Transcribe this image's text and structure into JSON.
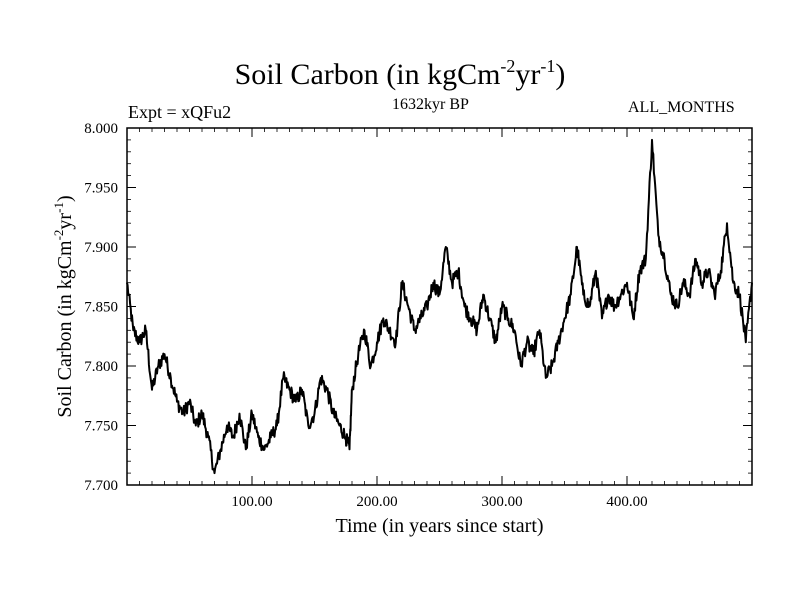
{
  "title": {
    "prefix": "Soil Carbon (in kgCm",
    "exp1": "-2",
    "mid": "yr",
    "exp2": "-1",
    "suffix": ")"
  },
  "header": {
    "experiment": "Expt = xQFu2",
    "period": "1632kyr BP",
    "months": "ALL_MONTHS"
  },
  "chart_data": {
    "type": "line",
    "title": "Soil Carbon (in kgCm-2yr-1)",
    "xlabel": "Time (in years since start)",
    "ylabel": "Soil Carbon (in kgCm-2yr-1)",
    "xlim": [
      0,
      500
    ],
    "ylim": [
      7.7,
      8.0
    ],
    "xticks": [
      100,
      200,
      300,
      400
    ],
    "xtick_labels": [
      "100.00",
      "200.00",
      "300.00",
      "400.00"
    ],
    "yticks": [
      7.7,
      7.75,
      7.8,
      7.85,
      7.9,
      7.95,
      8.0
    ],
    "ytick_labels": [
      "7.700",
      "7.750",
      "7.800",
      "7.850",
      "7.900",
      "7.950",
      "8.000"
    ],
    "series": [
      {
        "name": "Soil Carbon",
        "x": [
          0,
          5,
          10,
          15,
          20,
          25,
          30,
          35,
          40,
          45,
          50,
          55,
          60,
          65,
          70,
          75,
          80,
          85,
          90,
          95,
          100,
          105,
          110,
          115,
          120,
          125,
          130,
          135,
          140,
          145,
          150,
          155,
          160,
          165,
          170,
          175,
          178,
          180,
          185,
          190,
          195,
          200,
          205,
          210,
          215,
          220,
          225,
          230,
          235,
          240,
          245,
          250,
          255,
          260,
          265,
          270,
          275,
          280,
          285,
          290,
          295,
          300,
          305,
          310,
          315,
          320,
          325,
          330,
          335,
          340,
          345,
          350,
          355,
          360,
          365,
          370,
          375,
          380,
          385,
          390,
          395,
          400,
          405,
          410,
          415,
          420,
          425,
          430,
          435,
          440,
          445,
          450,
          455,
          460,
          465,
          470,
          475,
          480,
          485,
          490,
          495,
          500
        ],
        "y": [
          7.87,
          7.83,
          7.82,
          7.83,
          7.78,
          7.8,
          7.81,
          7.79,
          7.77,
          7.76,
          7.77,
          7.75,
          7.76,
          7.74,
          7.71,
          7.73,
          7.75,
          7.74,
          7.76,
          7.73,
          7.76,
          7.74,
          7.73,
          7.74,
          7.75,
          7.79,
          7.78,
          7.77,
          7.78,
          7.75,
          7.76,
          7.79,
          7.78,
          7.76,
          7.75,
          7.74,
          7.73,
          7.78,
          7.81,
          7.83,
          7.8,
          7.82,
          7.84,
          7.83,
          7.82,
          7.87,
          7.85,
          7.83,
          7.84,
          7.85,
          7.87,
          7.86,
          7.9,
          7.87,
          7.88,
          7.85,
          7.84,
          7.83,
          7.86,
          7.84,
          7.82,
          7.85,
          7.84,
          7.83,
          7.8,
          7.82,
          7.81,
          7.83,
          7.79,
          7.8,
          7.82,
          7.84,
          7.86,
          7.9,
          7.86,
          7.85,
          7.88,
          7.84,
          7.86,
          7.85,
          7.86,
          7.87,
          7.84,
          7.88,
          7.89,
          7.99,
          7.91,
          7.89,
          7.86,
          7.85,
          7.87,
          7.86,
          7.89,
          7.87,
          7.88,
          7.86,
          7.88,
          7.92,
          7.87,
          7.86,
          7.82,
          7.87
        ]
      }
    ]
  }
}
